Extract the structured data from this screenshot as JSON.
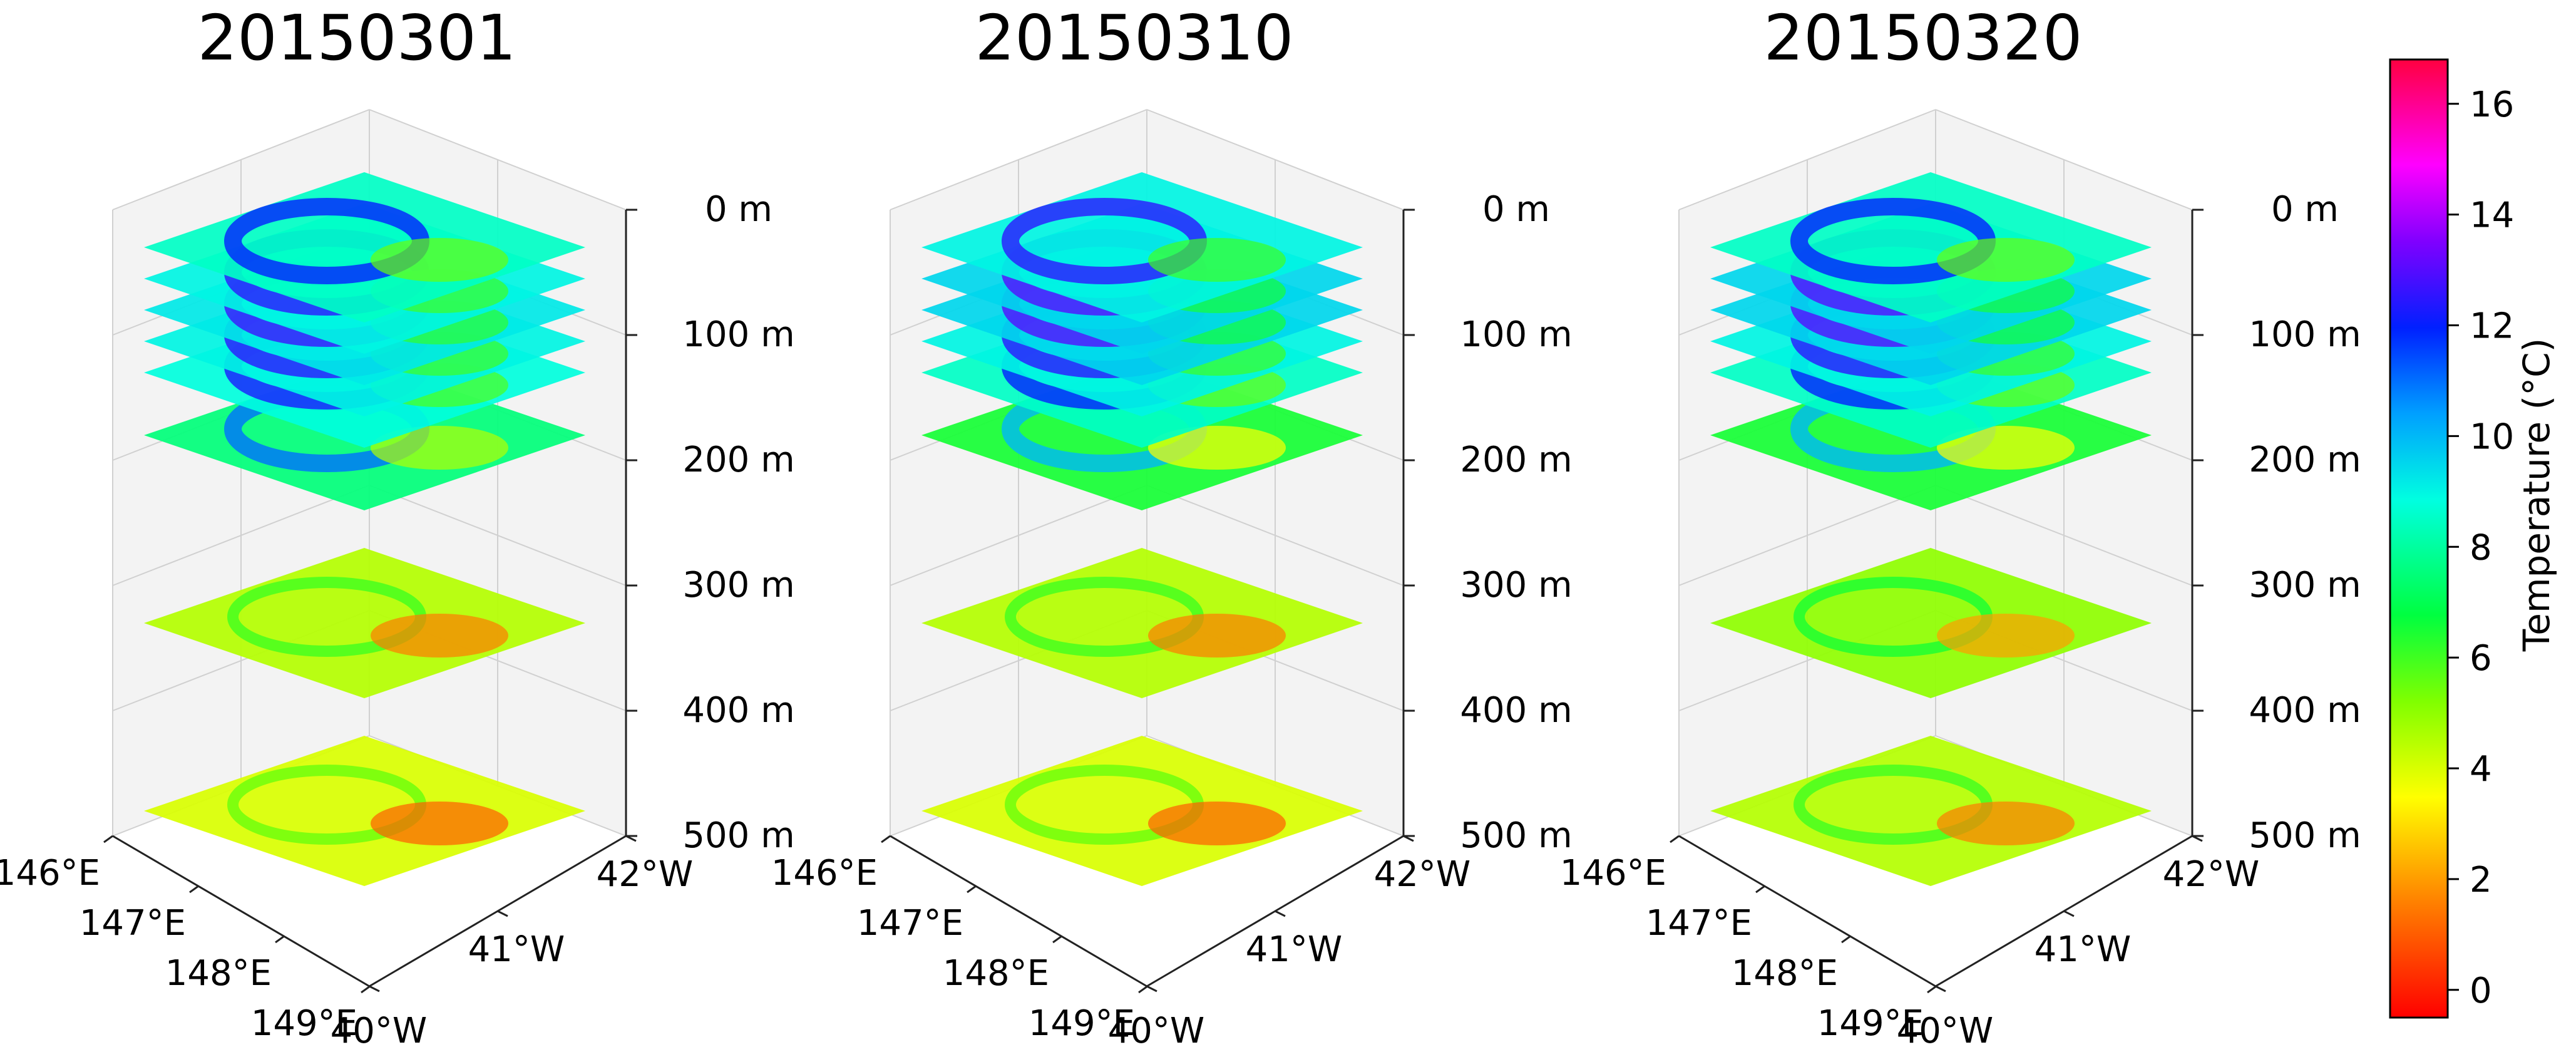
{
  "chart_data": {
    "type": "heatmap",
    "description_type": "3d-stacked-depth-slices",
    "panels": [
      {
        "title": "20150301",
        "depth_levels_m": [
          0,
          25,
          50,
          75,
          100,
          150,
          300,
          450
        ],
        "mean_temperature_c": [
          8.5,
          9.0,
          9.2,
          9.0,
          8.8,
          7.5,
          4.5,
          4.0
        ],
        "lon_ticks": [
          "146°E",
          "147°E",
          "148°E",
          "149°E"
        ],
        "lat_ticks": [
          "42°W",
          "41°W",
          "40°W"
        ],
        "depth_ticks": [
          "0 m",
          "100 m",
          "200 m",
          "300 m",
          "400 m",
          "500 m"
        ]
      },
      {
        "title": "20150310",
        "depth_levels_m": [
          0,
          25,
          50,
          75,
          100,
          150,
          300,
          450
        ],
        "mean_temperature_c": [
          9.0,
          9.5,
          9.5,
          9.0,
          8.5,
          6.5,
          4.5,
          4.0
        ],
        "lon_ticks": [
          "146°E",
          "147°E",
          "148°E",
          "149°E"
        ],
        "lat_ticks": [
          "42°W",
          "41°W",
          "40°W"
        ],
        "depth_ticks": [
          "0 m",
          "100 m",
          "200 m",
          "300 m",
          "400 m",
          "500 m"
        ]
      },
      {
        "title": "20150320",
        "depth_levels_m": [
          0,
          25,
          50,
          75,
          100,
          150,
          300,
          450
        ],
        "mean_temperature_c": [
          8.5,
          9.5,
          9.5,
          9.0,
          8.5,
          6.5,
          5.0,
          4.5
        ],
        "lon_ticks": [
          "146°E",
          "147°E",
          "148°E",
          "149°E"
        ],
        "lat_ticks": [
          "42°W",
          "41°W",
          "40°W"
        ],
        "depth_ticks": [
          "0 m",
          "100 m",
          "200 m",
          "300 m",
          "400 m",
          "500 m"
        ]
      }
    ],
    "zlim": [
      0,
      500
    ],
    "colorbar": {
      "label": "Temperature (°C)",
      "ticks": [
        "0",
        "2",
        "4",
        "6",
        "8",
        "10",
        "12",
        "14",
        "16"
      ],
      "range": [
        -0.5,
        16.8
      ],
      "colormap": "gist_rainbow_r"
    }
  }
}
